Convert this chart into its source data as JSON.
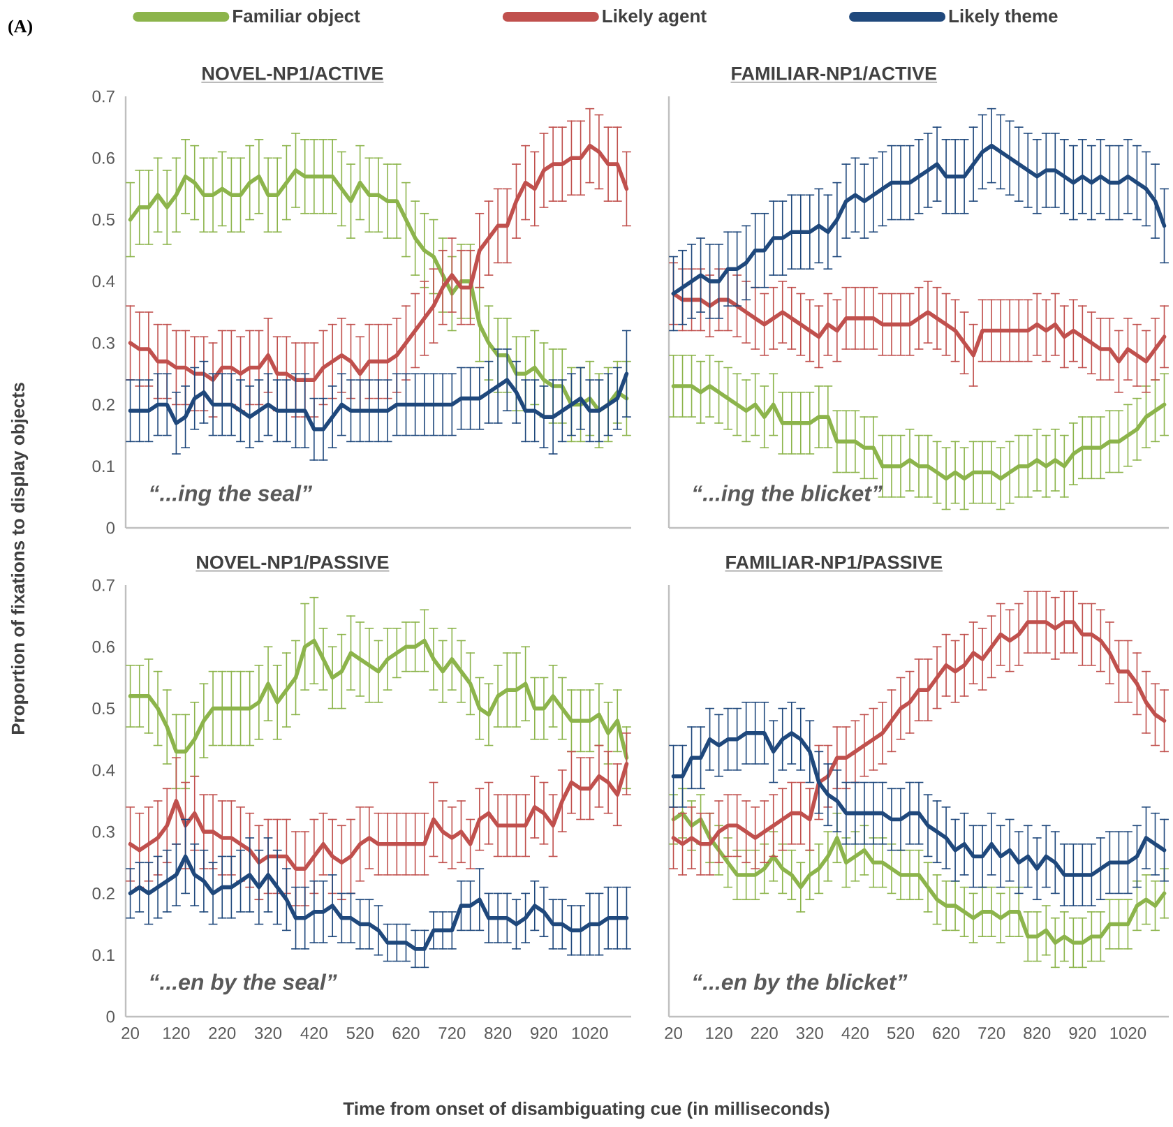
{
  "chart_data": [
    {
      "type": "line",
      "title": "NOVEL-NP1/ACTIVE",
      "ylabel": "Proportion of fixations to display objects",
      "legend": "top",
      "tick_labels": "y",
      "annotations": [
        "(A)",
        "“...ing the seal”"
      ],
      "x": [
        20,
        40,
        60,
        80,
        100,
        120,
        140,
        160,
        180,
        200,
        220,
        240,
        260,
        280,
        300,
        320,
        340,
        360,
        380,
        400,
        420,
        440,
        460,
        480,
        500,
        520,
        540,
        560,
        580,
        600,
        620,
        640,
        660,
        680,
        700,
        720,
        740,
        760,
        780,
        800,
        820,
        840,
        860,
        880,
        900,
        920,
        940,
        960,
        980,
        1000,
        1020,
        1040,
        1060,
        1080,
        1100
      ],
      "xlim": [
        10,
        1110
      ],
      "ylim": [
        0,
        0.7
      ],
      "xticks": [
        20,
        120,
        220,
        320,
        420,
        520,
        620,
        720,
        820,
        920,
        1020
      ],
      "yticks": [
        0,
        0.1,
        0.2,
        0.3,
        0.4,
        0.5,
        0.6,
        0.7
      ],
      "series": [
        {
          "name": "Familiar object",
          "color": "#8cb44b",
          "values": [
            0.5,
            0.52,
            0.52,
            0.54,
            0.52,
            0.54,
            0.57,
            0.56,
            0.54,
            0.54,
            0.55,
            0.54,
            0.54,
            0.56,
            0.57,
            0.54,
            0.54,
            0.56,
            0.58,
            0.57,
            0.57,
            0.57,
            0.57,
            0.55,
            0.53,
            0.56,
            0.54,
            0.54,
            0.53,
            0.53,
            0.5,
            0.47,
            0.45,
            0.44,
            0.41,
            0.38,
            0.4,
            0.4,
            0.33,
            0.3,
            0.28,
            0.28,
            0.25,
            0.25,
            0.26,
            0.24,
            0.23,
            0.23,
            0.2,
            0.2,
            0.21,
            0.19,
            0.2,
            0.22,
            0.21
          ],
          "errors": [
            0.06,
            0.06,
            0.06,
            0.06,
            0.06,
            0.06,
            0.06,
            0.06,
            0.06,
            0.06,
            0.06,
            0.06,
            0.06,
            0.06,
            0.06,
            0.06,
            0.06,
            0.06,
            0.06,
            0.06,
            0.06,
            0.06,
            0.06,
            0.06,
            0.06,
            0.06,
            0.06,
            0.06,
            0.06,
            0.06,
            0.06,
            0.06,
            0.06,
            0.06,
            0.06,
            0.06,
            0.06,
            0.06,
            0.06,
            0.06,
            0.06,
            0.06,
            0.06,
            0.06,
            0.06,
            0.06,
            0.06,
            0.06,
            0.06,
            0.06,
            0.06,
            0.06,
            0.06,
            0.05,
            0.06
          ]
        },
        {
          "name": "Likely agent",
          "color": "#c0504d",
          "values": [
            0.3,
            0.29,
            0.29,
            0.27,
            0.27,
            0.26,
            0.26,
            0.25,
            0.25,
            0.24,
            0.26,
            0.26,
            0.25,
            0.26,
            0.26,
            0.28,
            0.25,
            0.25,
            0.24,
            0.24,
            0.24,
            0.26,
            0.27,
            0.28,
            0.27,
            0.25,
            0.27,
            0.27,
            0.27,
            0.28,
            0.3,
            0.32,
            0.34,
            0.36,
            0.39,
            0.41,
            0.39,
            0.39,
            0.45,
            0.47,
            0.49,
            0.49,
            0.53,
            0.56,
            0.55,
            0.58,
            0.59,
            0.59,
            0.6,
            0.6,
            0.62,
            0.61,
            0.59,
            0.59,
            0.55
          ],
          "errors": [
            0.06,
            0.06,
            0.06,
            0.06,
            0.06,
            0.06,
            0.06,
            0.06,
            0.06,
            0.06,
            0.06,
            0.06,
            0.06,
            0.06,
            0.06,
            0.06,
            0.06,
            0.06,
            0.06,
            0.06,
            0.06,
            0.06,
            0.06,
            0.06,
            0.06,
            0.06,
            0.06,
            0.06,
            0.06,
            0.06,
            0.06,
            0.06,
            0.06,
            0.06,
            0.06,
            0.06,
            0.06,
            0.06,
            0.06,
            0.06,
            0.06,
            0.06,
            0.06,
            0.06,
            0.06,
            0.06,
            0.06,
            0.06,
            0.06,
            0.06,
            0.06,
            0.06,
            0.06,
            0.06,
            0.06
          ]
        },
        {
          "name": "Likely theme",
          "color": "#1f487c",
          "values": [
            0.19,
            0.19,
            0.19,
            0.2,
            0.2,
            0.17,
            0.18,
            0.21,
            0.22,
            0.2,
            0.2,
            0.2,
            0.19,
            0.18,
            0.19,
            0.2,
            0.19,
            0.19,
            0.19,
            0.19,
            0.16,
            0.16,
            0.18,
            0.2,
            0.19,
            0.19,
            0.19,
            0.19,
            0.19,
            0.2,
            0.2,
            0.2,
            0.2,
            0.2,
            0.2,
            0.2,
            0.21,
            0.21,
            0.21,
            0.22,
            0.23,
            0.24,
            0.22,
            0.19,
            0.19,
            0.18,
            0.18,
            0.19,
            0.2,
            0.21,
            0.19,
            0.19,
            0.2,
            0.21,
            0.25
          ],
          "errors": [
            0.05,
            0.05,
            0.05,
            0.05,
            0.05,
            0.05,
            0.05,
            0.05,
            0.05,
            0.05,
            0.05,
            0.05,
            0.05,
            0.05,
            0.05,
            0.05,
            0.05,
            0.05,
            0.06,
            0.06,
            0.05,
            0.05,
            0.05,
            0.05,
            0.05,
            0.05,
            0.05,
            0.05,
            0.05,
            0.05,
            0.05,
            0.05,
            0.05,
            0.05,
            0.05,
            0.05,
            0.05,
            0.05,
            0.05,
            0.05,
            0.06,
            0.05,
            0.05,
            0.05,
            0.05,
            0.05,
            0.06,
            0.05,
            0.05,
            0.05,
            0.05,
            0.05,
            0.05,
            0.05,
            0.07
          ]
        }
      ]
    },
    {
      "type": "line",
      "title": "FAMILIAR-NP1/ACTIVE",
      "tick_labels": false,
      "annotations": [
        "“...ing the blicket”"
      ],
      "x": [
        20,
        40,
        60,
        80,
        100,
        120,
        140,
        160,
        180,
        200,
        220,
        240,
        260,
        280,
        300,
        320,
        340,
        360,
        380,
        400,
        420,
        440,
        460,
        480,
        500,
        520,
        540,
        560,
        580,
        600,
        620,
        640,
        660,
        680,
        700,
        720,
        740,
        760,
        780,
        800,
        820,
        840,
        860,
        880,
        900,
        920,
        940,
        960,
        980,
        1000,
        1020,
        1040,
        1060,
        1080,
        1100
      ],
      "xlim": [
        10,
        1110
      ],
      "ylim": [
        0,
        0.7
      ],
      "xticks": [
        20,
        120,
        220,
        320,
        420,
        520,
        620,
        720,
        820,
        920,
        1020
      ],
      "yticks": [
        0,
        0.1,
        0.2,
        0.3,
        0.4,
        0.5,
        0.6,
        0.7
      ],
      "series": [
        {
          "color": "#8cb44b",
          "values": [
            0.23,
            0.23,
            0.23,
            0.22,
            0.23,
            0.22,
            0.21,
            0.2,
            0.19,
            0.2,
            0.18,
            0.2,
            0.17,
            0.17,
            0.17,
            0.17,
            0.18,
            0.18,
            0.14,
            0.14,
            0.14,
            0.13,
            0.13,
            0.1,
            0.1,
            0.1,
            0.11,
            0.1,
            0.1,
            0.09,
            0.08,
            0.09,
            0.08,
            0.09,
            0.09,
            0.09,
            0.08,
            0.09,
            0.1,
            0.1,
            0.11,
            0.1,
            0.11,
            0.1,
            0.12,
            0.13,
            0.13,
            0.13,
            0.14,
            0.14,
            0.15,
            0.16,
            0.18,
            0.19,
            0.2
          ],
          "errors": [
            0.05,
            0.05,
            0.05,
            0.05,
            0.05,
            0.05,
            0.05,
            0.05,
            0.05,
            0.05,
            0.05,
            0.05,
            0.05,
            0.05,
            0.05,
            0.05,
            0.05,
            0.05,
            0.05,
            0.05,
            0.05,
            0.05,
            0.05,
            0.05,
            0.05,
            0.05,
            0.05,
            0.05,
            0.05,
            0.05,
            0.05,
            0.05,
            0.05,
            0.05,
            0.05,
            0.05,
            0.05,
            0.05,
            0.05,
            0.05,
            0.05,
            0.05,
            0.05,
            0.05,
            0.05,
            0.05,
            0.05,
            0.05,
            0.05,
            0.05,
            0.05,
            0.05,
            0.05,
            0.05,
            0.05
          ]
        },
        {
          "color": "#c0504d",
          "values": [
            0.38,
            0.37,
            0.37,
            0.37,
            0.36,
            0.37,
            0.37,
            0.36,
            0.35,
            0.34,
            0.33,
            0.34,
            0.35,
            0.34,
            0.33,
            0.32,
            0.31,
            0.33,
            0.32,
            0.34,
            0.34,
            0.34,
            0.34,
            0.33,
            0.33,
            0.33,
            0.33,
            0.34,
            0.35,
            0.34,
            0.33,
            0.32,
            0.3,
            0.28,
            0.32,
            0.32,
            0.32,
            0.32,
            0.32,
            0.32,
            0.33,
            0.32,
            0.33,
            0.31,
            0.32,
            0.31,
            0.3,
            0.29,
            0.29,
            0.27,
            0.29,
            0.28,
            0.27,
            0.29,
            0.31
          ],
          "errors": [
            0.05,
            0.05,
            0.05,
            0.05,
            0.05,
            0.05,
            0.05,
            0.05,
            0.05,
            0.05,
            0.05,
            0.05,
            0.05,
            0.05,
            0.05,
            0.05,
            0.05,
            0.05,
            0.05,
            0.05,
            0.05,
            0.05,
            0.05,
            0.05,
            0.05,
            0.05,
            0.05,
            0.05,
            0.05,
            0.05,
            0.05,
            0.05,
            0.05,
            0.05,
            0.05,
            0.05,
            0.05,
            0.05,
            0.05,
            0.05,
            0.05,
            0.05,
            0.05,
            0.05,
            0.05,
            0.05,
            0.05,
            0.05,
            0.05,
            0.05,
            0.05,
            0.05,
            0.05,
            0.05,
            0.05
          ]
        },
        {
          "color": "#1f487c",
          "values": [
            0.38,
            0.39,
            0.4,
            0.41,
            0.4,
            0.4,
            0.42,
            0.42,
            0.43,
            0.45,
            0.45,
            0.47,
            0.47,
            0.48,
            0.48,
            0.48,
            0.49,
            0.48,
            0.5,
            0.53,
            0.54,
            0.53,
            0.54,
            0.55,
            0.56,
            0.56,
            0.56,
            0.57,
            0.58,
            0.59,
            0.57,
            0.57,
            0.57,
            0.59,
            0.61,
            0.62,
            0.61,
            0.6,
            0.59,
            0.58,
            0.57,
            0.58,
            0.58,
            0.57,
            0.56,
            0.57,
            0.56,
            0.57,
            0.56,
            0.56,
            0.57,
            0.56,
            0.55,
            0.53,
            0.49
          ],
          "errors": [
            0.06,
            0.06,
            0.06,
            0.06,
            0.06,
            0.06,
            0.06,
            0.06,
            0.06,
            0.06,
            0.06,
            0.06,
            0.06,
            0.06,
            0.06,
            0.06,
            0.06,
            0.06,
            0.06,
            0.06,
            0.06,
            0.06,
            0.06,
            0.06,
            0.06,
            0.06,
            0.06,
            0.06,
            0.06,
            0.06,
            0.06,
            0.06,
            0.06,
            0.06,
            0.06,
            0.06,
            0.06,
            0.06,
            0.06,
            0.06,
            0.06,
            0.06,
            0.06,
            0.06,
            0.06,
            0.06,
            0.06,
            0.06,
            0.06,
            0.06,
            0.06,
            0.06,
            0.06,
            0.06,
            0.06
          ]
        }
      ]
    },
    {
      "type": "line",
      "title": "NOVEL-NP1/PASSIVE",
      "xlabel": "Time from onset of disambiguating cue (in milliseconds)",
      "annotations": [
        "“...en by the seal”"
      ],
      "x": [
        20,
        40,
        60,
        80,
        100,
        120,
        140,
        160,
        180,
        200,
        220,
        240,
        260,
        280,
        300,
        320,
        340,
        360,
        380,
        400,
        420,
        440,
        460,
        480,
        500,
        520,
        540,
        560,
        580,
        600,
        620,
        640,
        660,
        680,
        700,
        720,
        740,
        760,
        780,
        800,
        820,
        840,
        860,
        880,
        900,
        920,
        940,
        960,
        980,
        1000,
        1020,
        1040,
        1060,
        1080,
        1100
      ],
      "xlim": [
        10,
        1110
      ],
      "ylim": [
        0,
        0.7
      ],
      "xticks": [
        20,
        120,
        220,
        320,
        420,
        520,
        620,
        720,
        820,
        920,
        1020
      ],
      "yticks": [
        0,
        0.1,
        0.2,
        0.3,
        0.4,
        0.5,
        0.6,
        0.7
      ],
      "series": [
        {
          "color": "#8cb44b",
          "values": [
            0.52,
            0.52,
            0.52,
            0.5,
            0.47,
            0.43,
            0.43,
            0.45,
            0.48,
            0.5,
            0.5,
            0.5,
            0.5,
            0.5,
            0.51,
            0.54,
            0.51,
            0.53,
            0.55,
            0.6,
            0.61,
            0.58,
            0.55,
            0.56,
            0.59,
            0.58,
            0.57,
            0.56,
            0.58,
            0.59,
            0.6,
            0.6,
            0.61,
            0.58,
            0.56,
            0.58,
            0.56,
            0.54,
            0.5,
            0.49,
            0.52,
            0.53,
            0.53,
            0.54,
            0.5,
            0.5,
            0.52,
            0.5,
            0.48,
            0.48,
            0.48,
            0.49,
            0.46,
            0.48,
            0.42
          ],
          "errors": [
            0.05,
            0.05,
            0.06,
            0.06,
            0.06,
            0.06,
            0.06,
            0.06,
            0.06,
            0.06,
            0.06,
            0.06,
            0.06,
            0.06,
            0.06,
            0.06,
            0.06,
            0.06,
            0.06,
            0.07,
            0.07,
            0.05,
            0.05,
            0.06,
            0.06,
            0.06,
            0.06,
            0.05,
            0.05,
            0.04,
            0.04,
            0.04,
            0.05,
            0.05,
            0.05,
            0.05,
            0.05,
            0.05,
            0.05,
            0.05,
            0.05,
            0.06,
            0.06,
            0.06,
            0.05,
            0.05,
            0.05,
            0.05,
            0.05,
            0.05,
            0.05,
            0.05,
            0.05,
            0.05,
            0.05
          ]
        },
        {
          "color": "#c0504d",
          "values": [
            0.28,
            0.27,
            0.28,
            0.29,
            0.31,
            0.35,
            0.31,
            0.33,
            0.3,
            0.3,
            0.29,
            0.29,
            0.28,
            0.27,
            0.25,
            0.26,
            0.26,
            0.26,
            0.24,
            0.24,
            0.26,
            0.28,
            0.26,
            0.25,
            0.26,
            0.28,
            0.29,
            0.28,
            0.28,
            0.28,
            0.28,
            0.28,
            0.28,
            0.32,
            0.3,
            0.29,
            0.3,
            0.28,
            0.32,
            0.33,
            0.31,
            0.31,
            0.31,
            0.31,
            0.34,
            0.33,
            0.31,
            0.35,
            0.38,
            0.37,
            0.37,
            0.39,
            0.38,
            0.36,
            0.41
          ],
          "errors": [
            0.06,
            0.06,
            0.06,
            0.06,
            0.06,
            0.07,
            0.07,
            0.06,
            0.06,
            0.06,
            0.06,
            0.06,
            0.06,
            0.06,
            0.06,
            0.06,
            0.06,
            0.06,
            0.06,
            0.06,
            0.06,
            0.05,
            0.06,
            0.06,
            0.06,
            0.06,
            0.05,
            0.05,
            0.05,
            0.05,
            0.05,
            0.05,
            0.05,
            0.06,
            0.05,
            0.05,
            0.05,
            0.04,
            0.05,
            0.05,
            0.05,
            0.05,
            0.05,
            0.05,
            0.05,
            0.05,
            0.05,
            0.05,
            0.05,
            0.05,
            0.05,
            0.05,
            0.05,
            0.05,
            0.05
          ]
        },
        {
          "color": "#1f487c",
          "values": [
            0.2,
            0.21,
            0.2,
            0.21,
            0.22,
            0.23,
            0.26,
            0.23,
            0.22,
            0.2,
            0.21,
            0.21,
            0.22,
            0.23,
            0.21,
            0.23,
            0.21,
            0.19,
            0.16,
            0.16,
            0.17,
            0.17,
            0.18,
            0.16,
            0.16,
            0.15,
            0.15,
            0.14,
            0.12,
            0.12,
            0.12,
            0.11,
            0.11,
            0.14,
            0.14,
            0.14,
            0.18,
            0.18,
            0.19,
            0.16,
            0.16,
            0.16,
            0.15,
            0.16,
            0.18,
            0.17,
            0.15,
            0.15,
            0.14,
            0.14,
            0.15,
            0.15,
            0.16,
            0.16,
            0.16
          ],
          "errors": [
            0.04,
            0.04,
            0.05,
            0.05,
            0.05,
            0.05,
            0.06,
            0.05,
            0.05,
            0.05,
            0.05,
            0.05,
            0.05,
            0.06,
            0.06,
            0.06,
            0.06,
            0.05,
            0.05,
            0.05,
            0.05,
            0.05,
            0.05,
            0.04,
            0.04,
            0.04,
            0.04,
            0.04,
            0.03,
            0.03,
            0.03,
            0.03,
            0.03,
            0.03,
            0.03,
            0.03,
            0.04,
            0.04,
            0.05,
            0.04,
            0.04,
            0.04,
            0.04,
            0.04,
            0.04,
            0.04,
            0.04,
            0.04,
            0.04,
            0.04,
            0.05,
            0.05,
            0.05,
            0.05,
            0.05
          ]
        }
      ]
    },
    {
      "type": "line",
      "title": "FAMILIAR-NP1/PASSIVE",
      "tick_labels": "x",
      "annotations": [
        "“...en by the blicket”"
      ],
      "x": [
        20,
        40,
        60,
        80,
        100,
        120,
        140,
        160,
        180,
        200,
        220,
        240,
        260,
        280,
        300,
        320,
        340,
        360,
        380,
        400,
        420,
        440,
        460,
        480,
        500,
        520,
        540,
        560,
        580,
        600,
        620,
        640,
        660,
        680,
        700,
        720,
        740,
        760,
        780,
        800,
        820,
        840,
        860,
        880,
        900,
        920,
        940,
        960,
        980,
        1000,
        1020,
        1040,
        1060,
        1080,
        1100
      ],
      "xlim": [
        10,
        1110
      ],
      "ylim": [
        0,
        0.7
      ],
      "xticks": [
        20,
        120,
        220,
        320,
        420,
        520,
        620,
        720,
        820,
        920,
        1020
      ],
      "yticks": [
        0,
        0.1,
        0.2,
        0.3,
        0.4,
        0.5,
        0.6,
        0.7
      ],
      "series": [
        {
          "color": "#8cb44b",
          "values": [
            0.32,
            0.33,
            0.31,
            0.32,
            0.29,
            0.27,
            0.25,
            0.23,
            0.23,
            0.23,
            0.24,
            0.26,
            0.24,
            0.23,
            0.21,
            0.23,
            0.24,
            0.26,
            0.29,
            0.25,
            0.26,
            0.27,
            0.25,
            0.25,
            0.24,
            0.23,
            0.23,
            0.23,
            0.21,
            0.19,
            0.18,
            0.18,
            0.17,
            0.16,
            0.17,
            0.17,
            0.16,
            0.17,
            0.17,
            0.13,
            0.13,
            0.14,
            0.12,
            0.13,
            0.12,
            0.12,
            0.13,
            0.13,
            0.15,
            0.15,
            0.15,
            0.18,
            0.19,
            0.18,
            0.2
          ],
          "errors": [
            0.04,
            0.04,
            0.04,
            0.04,
            0.04,
            0.04,
            0.04,
            0.04,
            0.04,
            0.04,
            0.04,
            0.04,
            0.04,
            0.04,
            0.04,
            0.04,
            0.04,
            0.04,
            0.04,
            0.04,
            0.04,
            0.04,
            0.04,
            0.04,
            0.04,
            0.04,
            0.04,
            0.04,
            0.04,
            0.04,
            0.04,
            0.04,
            0.04,
            0.04,
            0.04,
            0.04,
            0.04,
            0.04,
            0.04,
            0.04,
            0.04,
            0.04,
            0.04,
            0.04,
            0.04,
            0.04,
            0.04,
            0.04,
            0.04,
            0.04,
            0.04,
            0.04,
            0.04,
            0.04,
            0.04
          ]
        },
        {
          "color": "#c0504d",
          "values": [
            0.29,
            0.28,
            0.29,
            0.28,
            0.28,
            0.3,
            0.31,
            0.31,
            0.3,
            0.29,
            0.3,
            0.31,
            0.32,
            0.33,
            0.33,
            0.32,
            0.38,
            0.39,
            0.42,
            0.42,
            0.43,
            0.44,
            0.45,
            0.46,
            0.48,
            0.5,
            0.51,
            0.53,
            0.53,
            0.55,
            0.57,
            0.56,
            0.57,
            0.59,
            0.58,
            0.6,
            0.62,
            0.61,
            0.62,
            0.64,
            0.64,
            0.64,
            0.63,
            0.64,
            0.64,
            0.62,
            0.62,
            0.61,
            0.59,
            0.56,
            0.56,
            0.54,
            0.51,
            0.49,
            0.48
          ],
          "errors": [
            0.05,
            0.05,
            0.05,
            0.05,
            0.05,
            0.05,
            0.05,
            0.05,
            0.05,
            0.05,
            0.05,
            0.05,
            0.05,
            0.05,
            0.05,
            0.05,
            0.06,
            0.05,
            0.05,
            0.05,
            0.05,
            0.05,
            0.05,
            0.05,
            0.05,
            0.05,
            0.05,
            0.05,
            0.05,
            0.05,
            0.05,
            0.05,
            0.05,
            0.05,
            0.05,
            0.05,
            0.05,
            0.05,
            0.05,
            0.05,
            0.05,
            0.05,
            0.05,
            0.05,
            0.05,
            0.05,
            0.05,
            0.05,
            0.05,
            0.05,
            0.05,
            0.05,
            0.05,
            0.05,
            0.05
          ]
        },
        {
          "color": "#1f487c",
          "values": [
            0.39,
            0.39,
            0.42,
            0.42,
            0.45,
            0.44,
            0.45,
            0.45,
            0.46,
            0.46,
            0.46,
            0.43,
            0.45,
            0.46,
            0.45,
            0.43,
            0.38,
            0.36,
            0.35,
            0.33,
            0.33,
            0.33,
            0.33,
            0.33,
            0.32,
            0.32,
            0.33,
            0.33,
            0.31,
            0.3,
            0.29,
            0.27,
            0.28,
            0.26,
            0.26,
            0.28,
            0.26,
            0.27,
            0.25,
            0.26,
            0.24,
            0.26,
            0.25,
            0.23,
            0.23,
            0.23,
            0.23,
            0.24,
            0.25,
            0.25,
            0.25,
            0.26,
            0.29,
            0.28,
            0.27
          ],
          "errors": [
            0.05,
            0.05,
            0.05,
            0.05,
            0.05,
            0.05,
            0.05,
            0.05,
            0.05,
            0.05,
            0.05,
            0.05,
            0.05,
            0.05,
            0.05,
            0.05,
            0.05,
            0.05,
            0.05,
            0.05,
            0.05,
            0.05,
            0.05,
            0.05,
            0.05,
            0.05,
            0.05,
            0.05,
            0.05,
            0.05,
            0.05,
            0.05,
            0.05,
            0.05,
            0.05,
            0.05,
            0.05,
            0.05,
            0.05,
            0.05,
            0.05,
            0.05,
            0.05,
            0.05,
            0.05,
            0.05,
            0.05,
            0.05,
            0.05,
            0.05,
            0.05,
            0.05,
            0.05,
            0.05,
            0.05
          ]
        }
      ]
    }
  ]
}
